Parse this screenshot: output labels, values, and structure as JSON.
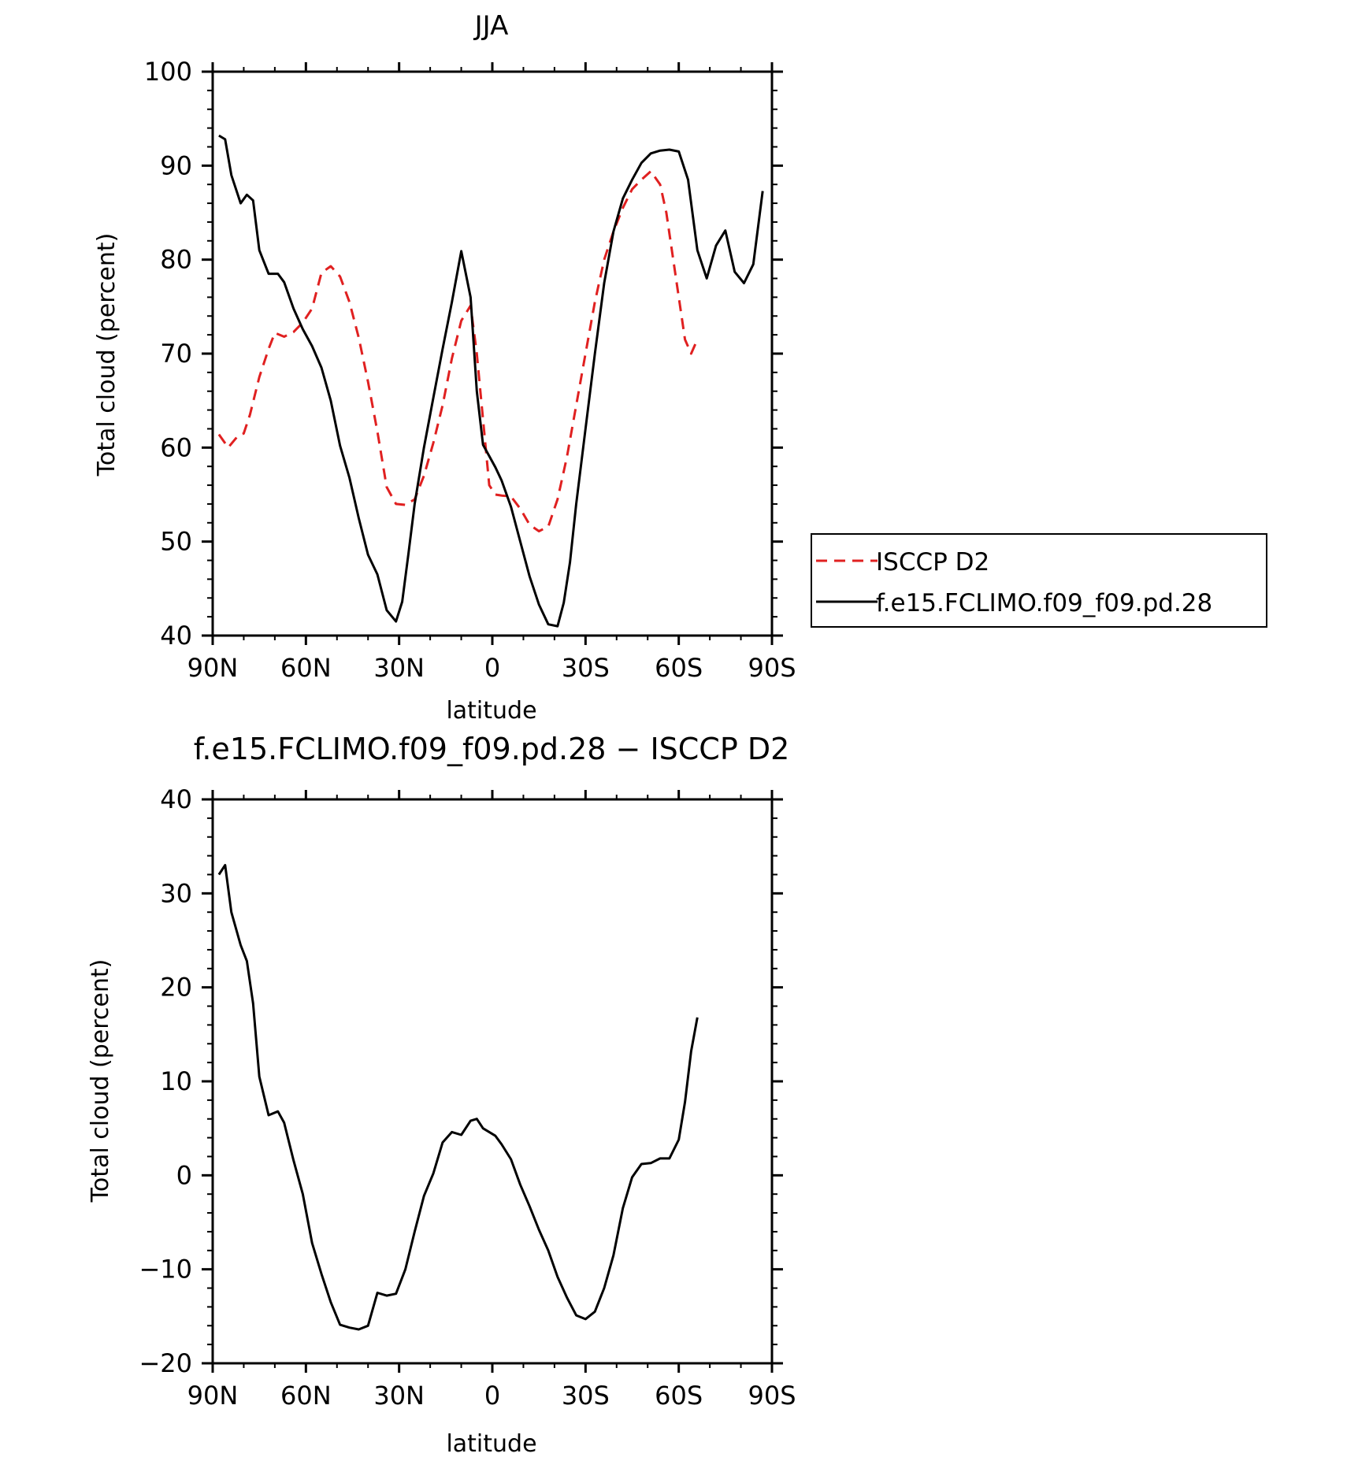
{
  "chart_data": [
    {
      "type": "line",
      "title": "JJA",
      "xlabel": "latitude",
      "ylabel": "Total cloud (percent)",
      "xlim": [
        90,
        -90
      ],
      "ylim": [
        40,
        100
      ],
      "xticks": [
        90,
        60,
        30,
        0,
        -30,
        -60,
        -90
      ],
      "xtick_labels": [
        "90N",
        "60N",
        "30N",
        "0",
        "30S",
        "60S",
        "90S"
      ],
      "yticks": [
        40,
        50,
        60,
        70,
        80,
        90,
        100
      ],
      "ytick_labels": [
        "40",
        "50",
        "60",
        "70",
        "80",
        "90",
        "100"
      ],
      "legend_position": "right",
      "series": [
        {
          "name": "ISCCP D2",
          "color": "#e02020",
          "dash": "dashed",
          "x": [
            88,
            85,
            82,
            80,
            78,
            75,
            72,
            70,
            67,
            64,
            61,
            58,
            55,
            52,
            49,
            46,
            43,
            40,
            37,
            34,
            31,
            28,
            25,
            22,
            19,
            16,
            13,
            10,
            7,
            5,
            3,
            1,
            -1,
            -3,
            -6,
            -9,
            -12,
            -15,
            -18,
            -21,
            -24,
            -27,
            -30,
            -33,
            -36,
            -39,
            -42,
            -45,
            -48,
            -51,
            -54,
            -56,
            -58,
            -60,
            -62,
            -64,
            -66
          ],
          "y": [
            61.4,
            60.0,
            61.2,
            61.5,
            63.5,
            67.5,
            70.5,
            72.2,
            71.8,
            72.3,
            73.3,
            74.8,
            78.6,
            79.3,
            78.2,
            75.5,
            71.7,
            67.0,
            61.7,
            55.8,
            54.0,
            53.9,
            54.5,
            57.0,
            60.5,
            64.5,
            69.5,
            73.5,
            75.1,
            70.0,
            63.0,
            56.0,
            55.0,
            54.9,
            54.8,
            53.5,
            51.8,
            51.1,
            51.6,
            54.5,
            59.0,
            64.5,
            70.0,
            75.5,
            80.0,
            83.0,
            85.5,
            87.5,
            88.5,
            89.4,
            88.0,
            85.0,
            80.5,
            76.0,
            71.5,
            70.0,
            71.5
          ]
        },
        {
          "name": "f.e15.FCLIMO.f09_f09.pd.28",
          "color": "#000000",
          "dash": "solid",
          "x": [
            88,
            86,
            84,
            81,
            79,
            77,
            75,
            72,
            69,
            67,
            64,
            61,
            58,
            55,
            52,
            49,
            46,
            43,
            40,
            37,
            34,
            31,
            29,
            27,
            25,
            22,
            19,
            16,
            13,
            10,
            7,
            5,
            3,
            1,
            -1,
            -3,
            -6,
            -9,
            -12,
            -15,
            -18,
            -21,
            -23,
            -25,
            -27,
            -30,
            -33,
            -36,
            -39,
            -42,
            -45,
            -48,
            -51,
            -54,
            -57,
            -60,
            -63,
            -66,
            -69,
            -72,
            -75,
            -78,
            -81,
            -84,
            -87
          ],
          "y": [
            93.2,
            92.8,
            89.0,
            86.0,
            86.9,
            86.3,
            81.0,
            78.5,
            78.5,
            77.6,
            74.8,
            72.6,
            70.8,
            68.5,
            65.0,
            60.2,
            56.8,
            52.5,
            48.6,
            46.5,
            42.7,
            41.5,
            43.6,
            48.7,
            54.0,
            60.0,
            65.3,
            70.5,
            75.5,
            80.9,
            76.0,
            66.0,
            60.3,
            59.1,
            57.9,
            56.5,
            53.7,
            50.0,
            46.3,
            43.3,
            41.2,
            41.0,
            43.5,
            47.8,
            54.0,
            62.0,
            70.0,
            77.5,
            83.0,
            86.5,
            88.5,
            90.3,
            91.3,
            91.6,
            91.7,
            91.5,
            88.5,
            81.0,
            78.0,
            81.5,
            83.1,
            78.7,
            77.5,
            79.5,
            87.3
          ]
        }
      ]
    },
    {
      "type": "line",
      "title": "f.e15.FCLIMO.f09_f09.pd.28 − ISCCP D2",
      "xlabel": "latitude",
      "ylabel": "Total cloud (percent)",
      "xlim": [
        90,
        -90
      ],
      "ylim": [
        -20,
        40
      ],
      "xticks": [
        90,
        60,
        30,
        0,
        -30,
        -60,
        -90
      ],
      "xtick_labels": [
        "90N",
        "60N",
        "30N",
        "0",
        "30S",
        "60S",
        "90S"
      ],
      "yticks": [
        -20,
        -10,
        0,
        10,
        20,
        30,
        40
      ],
      "ytick_labels": [
        "−20",
        "−10",
        "0",
        "10",
        "20",
        "30",
        "40"
      ],
      "series": [
        {
          "color": "#000000",
          "dash": "solid",
          "x": [
            88,
            86,
            84,
            81,
            79,
            77,
            75,
            72,
            69,
            67,
            64,
            61,
            58,
            55,
            52,
            49,
            46,
            43,
            40,
            37,
            34,
            31,
            28,
            25,
            22,
            19,
            16,
            13,
            10,
            7,
            5,
            3,
            1,
            -1,
            -3,
            -6,
            -9,
            -12,
            -15,
            -18,
            -21,
            -24,
            -27,
            -30,
            -33,
            -36,
            -39,
            -42,
            -45,
            -48,
            -51,
            -54,
            -57,
            -60,
            -62,
            -64,
            -66
          ],
          "y": [
            32.0,
            33.0,
            28.0,
            24.5,
            22.8,
            18.3,
            10.5,
            6.4,
            6.8,
            5.6,
            1.6,
            -2.0,
            -7.2,
            -10.5,
            -13.5,
            -15.9,
            -16.2,
            -16.4,
            -16.0,
            -12.5,
            -12.8,
            -12.6,
            -10.0,
            -6.0,
            -2.2,
            0.2,
            3.5,
            4.6,
            4.3,
            5.8,
            6.0,
            5.0,
            4.6,
            4.2,
            3.3,
            1.7,
            -1.0,
            -3.3,
            -5.8,
            -8.0,
            -10.8,
            -13.0,
            -14.9,
            -15.3,
            -14.5,
            -12.0,
            -8.5,
            -3.5,
            -0.2,
            1.2,
            1.3,
            1.8,
            1.8,
            3.8,
            7.8,
            13.2,
            16.8
          ]
        }
      ]
    }
  ]
}
